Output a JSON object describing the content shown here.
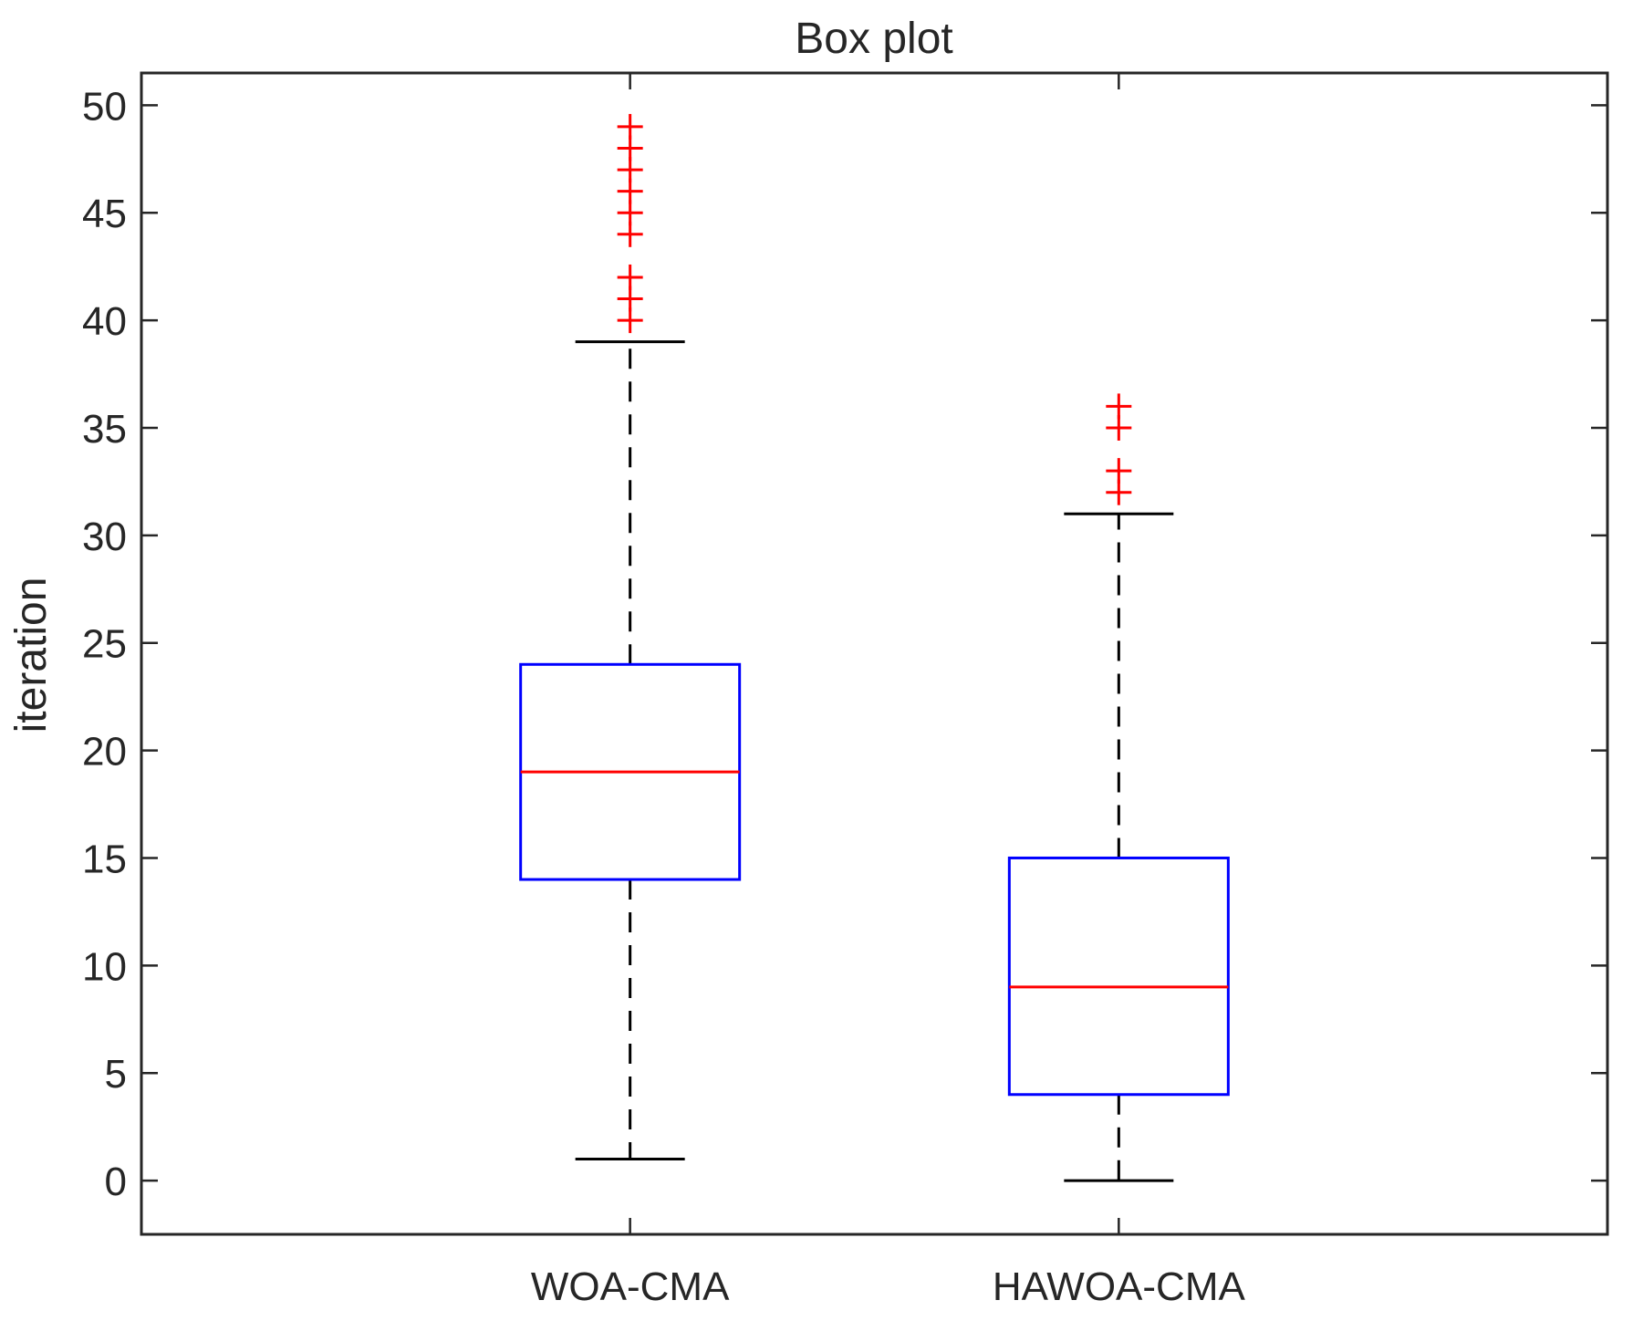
{
  "chart_data": {
    "type": "box",
    "title": "Box plot",
    "xlabel": "",
    "ylabel": "iteration",
    "ylim": [
      -2.5,
      51.5
    ],
    "yticks": [
      0,
      5,
      10,
      15,
      20,
      25,
      30,
      35,
      40,
      45,
      50
    ],
    "grid": false,
    "colors": {
      "box": "#0000ff",
      "median": "#ff0000",
      "outlier": "#ff0000",
      "whisker": "#000000",
      "axis": "#262626"
    },
    "series": [
      {
        "name": "WOA-CMA",
        "whisker_low": 1,
        "q1": 14,
        "median": 19,
        "q3": 24,
        "whisker_high": 39,
        "outliers": [
          40,
          41,
          42,
          44,
          45,
          46,
          47,
          48,
          49
        ]
      },
      {
        "name": "HAWOA-CMA",
        "whisker_low": 0,
        "q1": 4,
        "median": 9,
        "q3": 15,
        "whisker_high": 31,
        "outliers": [
          32,
          33,
          35,
          36
        ]
      }
    ]
  }
}
